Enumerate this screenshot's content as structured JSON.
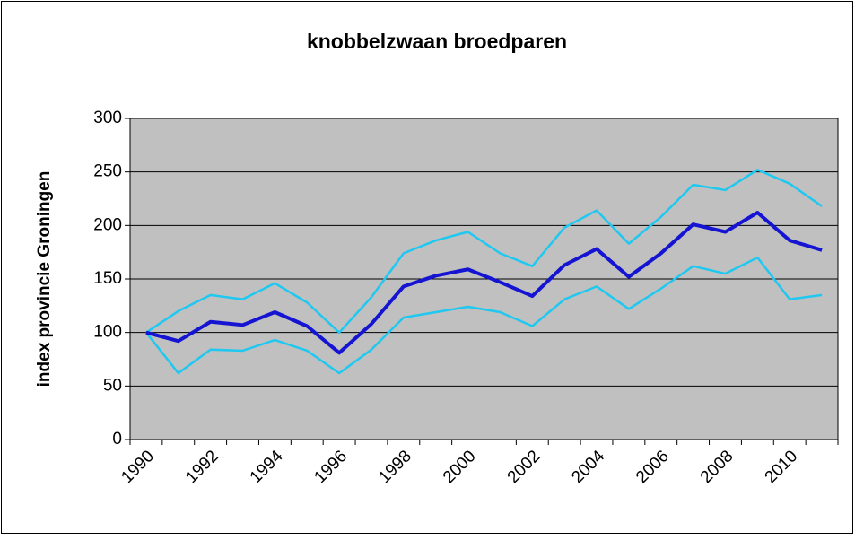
{
  "chart_data": {
    "type": "line",
    "title": "knobbelzwaan broedparen",
    "ylabel": "index provincie Groningen",
    "categories": [
      "1990",
      null,
      "1992",
      null,
      "1994",
      null,
      "1996",
      null,
      "1998",
      null,
      "2000",
      null,
      "2002",
      null,
      "2004",
      null,
      "2006",
      null,
      "2008",
      null,
      "2010",
      null
    ],
    "series": [
      {
        "color": "#1fc8f0",
        "values": [
          100,
          120,
          135,
          131,
          146,
          128,
          100,
          133,
          174,
          186,
          194,
          174,
          162,
          198,
          214,
          183,
          208,
          238,
          233,
          252,
          239,
          218
        ]
      },
      {
        "color": "#1fc8f0",
        "values": [
          100,
          62,
          84,
          83,
          93,
          83,
          62,
          84,
          114,
          119,
          124,
          119,
          106,
          131,
          143,
          122,
          141,
          162,
          155,
          170,
          131,
          135
        ]
      },
      {
        "color": "#1414d2",
        "values": [
          100,
          92,
          110,
          107,
          119,
          106,
          81,
          108,
          143,
          153,
          159,
          147,
          134,
          163,
          178,
          152,
          174,
          201,
          194,
          212,
          186,
          177
        ]
      }
    ],
    "ylim": [
      0,
      300
    ],
    "yticks": [
      0,
      50,
      100,
      150,
      200,
      250,
      300
    ],
    "grid": true,
    "plot_background": "#c0c0c0"
  }
}
